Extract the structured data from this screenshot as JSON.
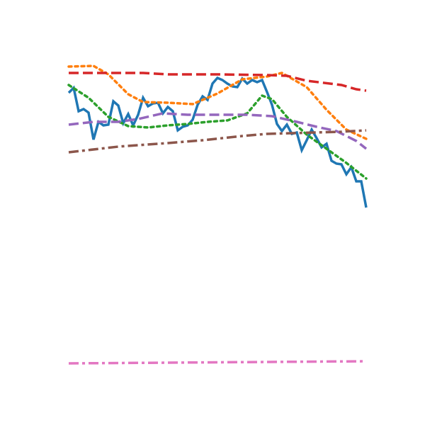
{
  "chart_data": {
    "type": "line",
    "xlim": [
      0,
      60
    ],
    "ylim": [
      0,
      600
    ],
    "series": [
      {
        "color": "#1f77b4",
        "dash": "solid",
        "x": [
          0,
          1,
          2,
          3,
          4,
          5,
          6,
          7,
          8,
          9,
          10,
          11,
          12,
          13,
          14,
          15,
          16,
          17,
          18,
          19,
          20,
          21,
          22,
          23,
          24,
          25,
          26,
          27,
          28,
          29,
          30,
          31,
          32,
          33,
          34,
          35,
          36,
          37,
          38,
          39,
          40,
          41,
          42,
          43,
          44,
          45,
          46,
          47,
          48,
          49,
          50,
          51,
          52,
          53,
          54,
          55,
          56,
          57,
          58,
          59,
          60
        ],
        "values": [
          469,
          476,
          443,
          446,
          441,
          403,
          428,
          423,
          424,
          457,
          451,
          426,
          439,
          423,
          438,
          462,
          450,
          454,
          455,
          440,
          449,
          443,
          416,
          421,
          423,
          431,
          452,
          464,
          459,
          482,
          490,
          487,
          482,
          478,
          477,
          489,
          482,
          487,
          484,
          487,
          470,
          452,
          425,
          415,
          424,
          411,
          413,
          388,
          402,
          417,
          405,
          392,
          397,
          373,
          369,
          368,
          354,
          364,
          344,
          344,
          307
        ]
      },
      {
        "color": "#ff7f0e",
        "dash": "dotted",
        "x": [
          0,
          5,
          8,
          12,
          15,
          20,
          25,
          30,
          35,
          40,
          43,
          48,
          52,
          56,
          60
        ],
        "values": [
          506,
          507,
          495,
          467,
          456,
          455,
          453,
          468,
          488,
          492,
          497,
          477,
          445,
          417,
          404
        ]
      },
      {
        "color": "#2ca02c",
        "dash": "dotted",
        "x": [
          0,
          4,
          8,
          12,
          16,
          20,
          24,
          28,
          32,
          36,
          39,
          41,
          44,
          48,
          52,
          56,
          60
        ],
        "values": [
          480,
          462,
          435,
          422,
          420,
          423,
          425,
          428,
          430,
          440,
          465,
          460,
          435,
          410,
          390,
          370,
          348
        ]
      },
      {
        "color": "#d62728",
        "dash": "dashed",
        "x": [
          0,
          10,
          15,
          20,
          30,
          40,
          44,
          48,
          55,
          58,
          60
        ],
        "values": [
          497,
          497,
          497,
          495,
          495,
          494,
          493,
          486,
          480,
          474,
          472
        ]
      },
      {
        "color": "#9467bd",
        "dash": "dashed",
        "x": [
          0,
          5,
          10,
          14,
          19,
          24,
          30,
          36,
          41,
          46,
          50,
          54,
          58,
          60
        ],
        "values": [
          424,
          428,
          428,
          432,
          440,
          438,
          438,
          438,
          436,
          428,
          421,
          415,
          401,
          390
        ]
      },
      {
        "color": "#8c564b",
        "dash": "dashdot",
        "x": [
          0,
          10,
          20,
          27,
          35,
          40,
          45,
          50,
          55,
          60
        ],
        "values": [
          385,
          393,
          398,
          402,
          408,
          411,
          412,
          413,
          414,
          416
        ]
      },
      {
        "color": "#e377c2",
        "dash": "dashdot",
        "x": [
          0,
          20,
          40,
          60
        ],
        "values": [
          87,
          88,
          89,
          90
        ]
      }
    ]
  }
}
